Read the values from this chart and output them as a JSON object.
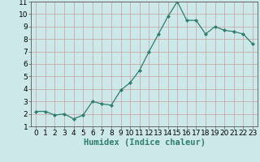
{
  "x": [
    0,
    1,
    2,
    3,
    4,
    5,
    6,
    7,
    8,
    9,
    10,
    11,
    12,
    13,
    14,
    15,
    16,
    17,
    18,
    19,
    20,
    21,
    22,
    23
  ],
  "y": [
    2.2,
    2.2,
    1.9,
    2.0,
    1.6,
    1.9,
    3.0,
    2.8,
    2.7,
    3.9,
    4.5,
    5.5,
    7.0,
    8.4,
    9.8,
    11.0,
    9.5,
    9.5,
    8.4,
    9.0,
    8.7,
    8.6,
    8.4,
    7.6
  ],
  "xlabel": "Humidex (Indice chaleur)",
  "ylim": [
    1,
    11
  ],
  "xlim": [
    -0.5,
    23.5
  ],
  "yticks": [
    1,
    2,
    3,
    4,
    5,
    6,
    7,
    8,
    9,
    10,
    11
  ],
  "xticks": [
    0,
    1,
    2,
    3,
    4,
    5,
    6,
    7,
    8,
    9,
    10,
    11,
    12,
    13,
    14,
    15,
    16,
    17,
    18,
    19,
    20,
    21,
    22,
    23
  ],
  "line_color": "#2e7d6e",
  "marker": "D",
  "marker_size": 2.0,
  "bg_color": "#cce8e8",
  "grid_color": "#b8d4d4",
  "xlabel_fontsize": 7.5,
  "tick_fontsize": 6.5
}
